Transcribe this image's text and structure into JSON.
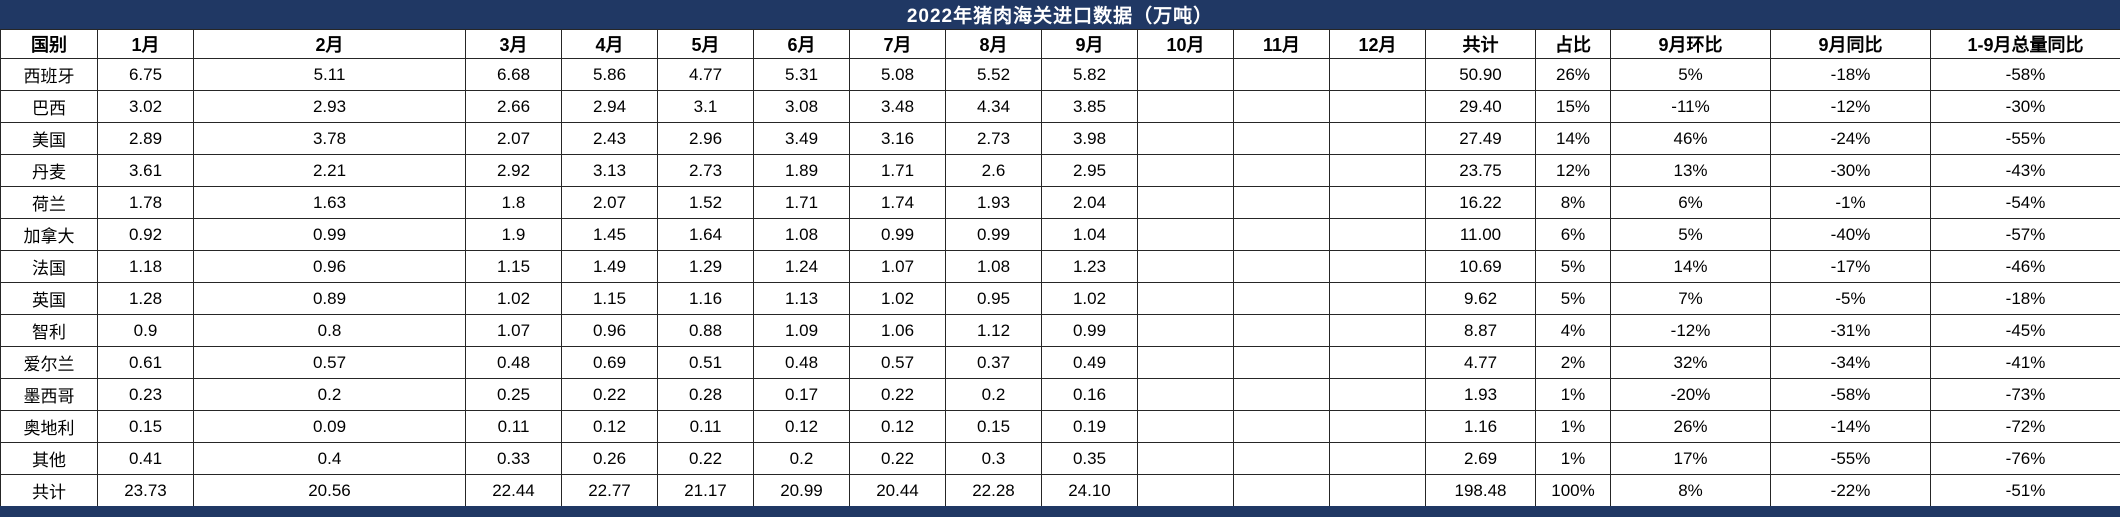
{
  "title": "2022年猪肉海关进口数据（万吨）",
  "colors": {
    "title_bar_bg": "#203864",
    "title_text": "#FFFFFF",
    "grid_line": "#262626"
  },
  "table": {
    "columns": [
      "国别",
      "1月",
      "2月",
      "3月",
      "4月",
      "5月",
      "6月",
      "7月",
      "8月",
      "9月",
      "10月",
      "11月",
      "12月",
      "共计",
      "占比",
      "9月环比",
      "9月同比",
      "1-9月总量同比"
    ],
    "rows": [
      [
        "西班牙",
        "6.75",
        "5.11",
        "6.68",
        "5.86",
        "4.77",
        "5.31",
        "5.08",
        "5.52",
        "5.82",
        "",
        "",
        "",
        "50.90",
        "26%",
        "5%",
        "-18%",
        "-58%"
      ],
      [
        "巴西",
        "3.02",
        "2.93",
        "2.66",
        "2.94",
        "3.1",
        "3.08",
        "3.48",
        "4.34",
        "3.85",
        "",
        "",
        "",
        "29.40",
        "15%",
        "-11%",
        "-12%",
        "-30%"
      ],
      [
        "美国",
        "2.89",
        "3.78",
        "2.07",
        "2.43",
        "2.96",
        "3.49",
        "3.16",
        "2.73",
        "3.98",
        "",
        "",
        "",
        "27.49",
        "14%",
        "46%",
        "-24%",
        "-55%"
      ],
      [
        "丹麦",
        "3.61",
        "2.21",
        "2.92",
        "3.13",
        "2.73",
        "1.89",
        "1.71",
        "2.6",
        "2.95",
        "",
        "",
        "",
        "23.75",
        "12%",
        "13%",
        "-30%",
        "-43%"
      ],
      [
        "荷兰",
        "1.78",
        "1.63",
        "1.8",
        "2.07",
        "1.52",
        "1.71",
        "1.74",
        "1.93",
        "2.04",
        "",
        "",
        "",
        "16.22",
        "8%",
        "6%",
        "-1%",
        "-54%"
      ],
      [
        "加拿大",
        "0.92",
        "0.99",
        "1.9",
        "1.45",
        "1.64",
        "1.08",
        "0.99",
        "0.99",
        "1.04",
        "",
        "",
        "",
        "11.00",
        "6%",
        "5%",
        "-40%",
        "-57%"
      ],
      [
        "法国",
        "1.18",
        "0.96",
        "1.15",
        "1.49",
        "1.29",
        "1.24",
        "1.07",
        "1.08",
        "1.23",
        "",
        "",
        "",
        "10.69",
        "5%",
        "14%",
        "-17%",
        "-46%"
      ],
      [
        "英国",
        "1.28",
        "0.89",
        "1.02",
        "1.15",
        "1.16",
        "1.13",
        "1.02",
        "0.95",
        "1.02",
        "",
        "",
        "",
        "9.62",
        "5%",
        "7%",
        "-5%",
        "-18%"
      ],
      [
        "智利",
        "0.9",
        "0.8",
        "1.07",
        "0.96",
        "0.88",
        "1.09",
        "1.06",
        "1.12",
        "0.99",
        "",
        "",
        "",
        "8.87",
        "4%",
        "-12%",
        "-31%",
        "-45%"
      ],
      [
        "爱尔兰",
        "0.61",
        "0.57",
        "0.48",
        "0.69",
        "0.51",
        "0.48",
        "0.57",
        "0.37",
        "0.49",
        "",
        "",
        "",
        "4.77",
        "2%",
        "32%",
        "-34%",
        "-41%"
      ],
      [
        "墨西哥",
        "0.23",
        "0.2",
        "0.25",
        "0.22",
        "0.28",
        "0.17",
        "0.22",
        "0.2",
        "0.16",
        "",
        "",
        "",
        "1.93",
        "1%",
        "-20%",
        "-58%",
        "-73%"
      ],
      [
        "奥地利",
        "0.15",
        "0.09",
        "0.11",
        "0.12",
        "0.11",
        "0.12",
        "0.12",
        "0.15",
        "0.19",
        "",
        "",
        "",
        "1.16",
        "1%",
        "26%",
        "-14%",
        "-72%"
      ],
      [
        "其他",
        "0.41",
        "0.4",
        "0.33",
        "0.26",
        "0.22",
        "0.2",
        "0.22",
        "0.3",
        "0.35",
        "",
        "",
        "",
        "2.69",
        "1%",
        "17%",
        "-55%",
        "-76%"
      ],
      [
        "共计",
        "23.73",
        "20.56",
        "22.44",
        "22.77",
        "21.17",
        "20.99",
        "20.44",
        "22.28",
        "24.10",
        "",
        "",
        "",
        "198.48",
        "100%",
        "8%",
        "-22%",
        "-51%"
      ]
    ]
  }
}
